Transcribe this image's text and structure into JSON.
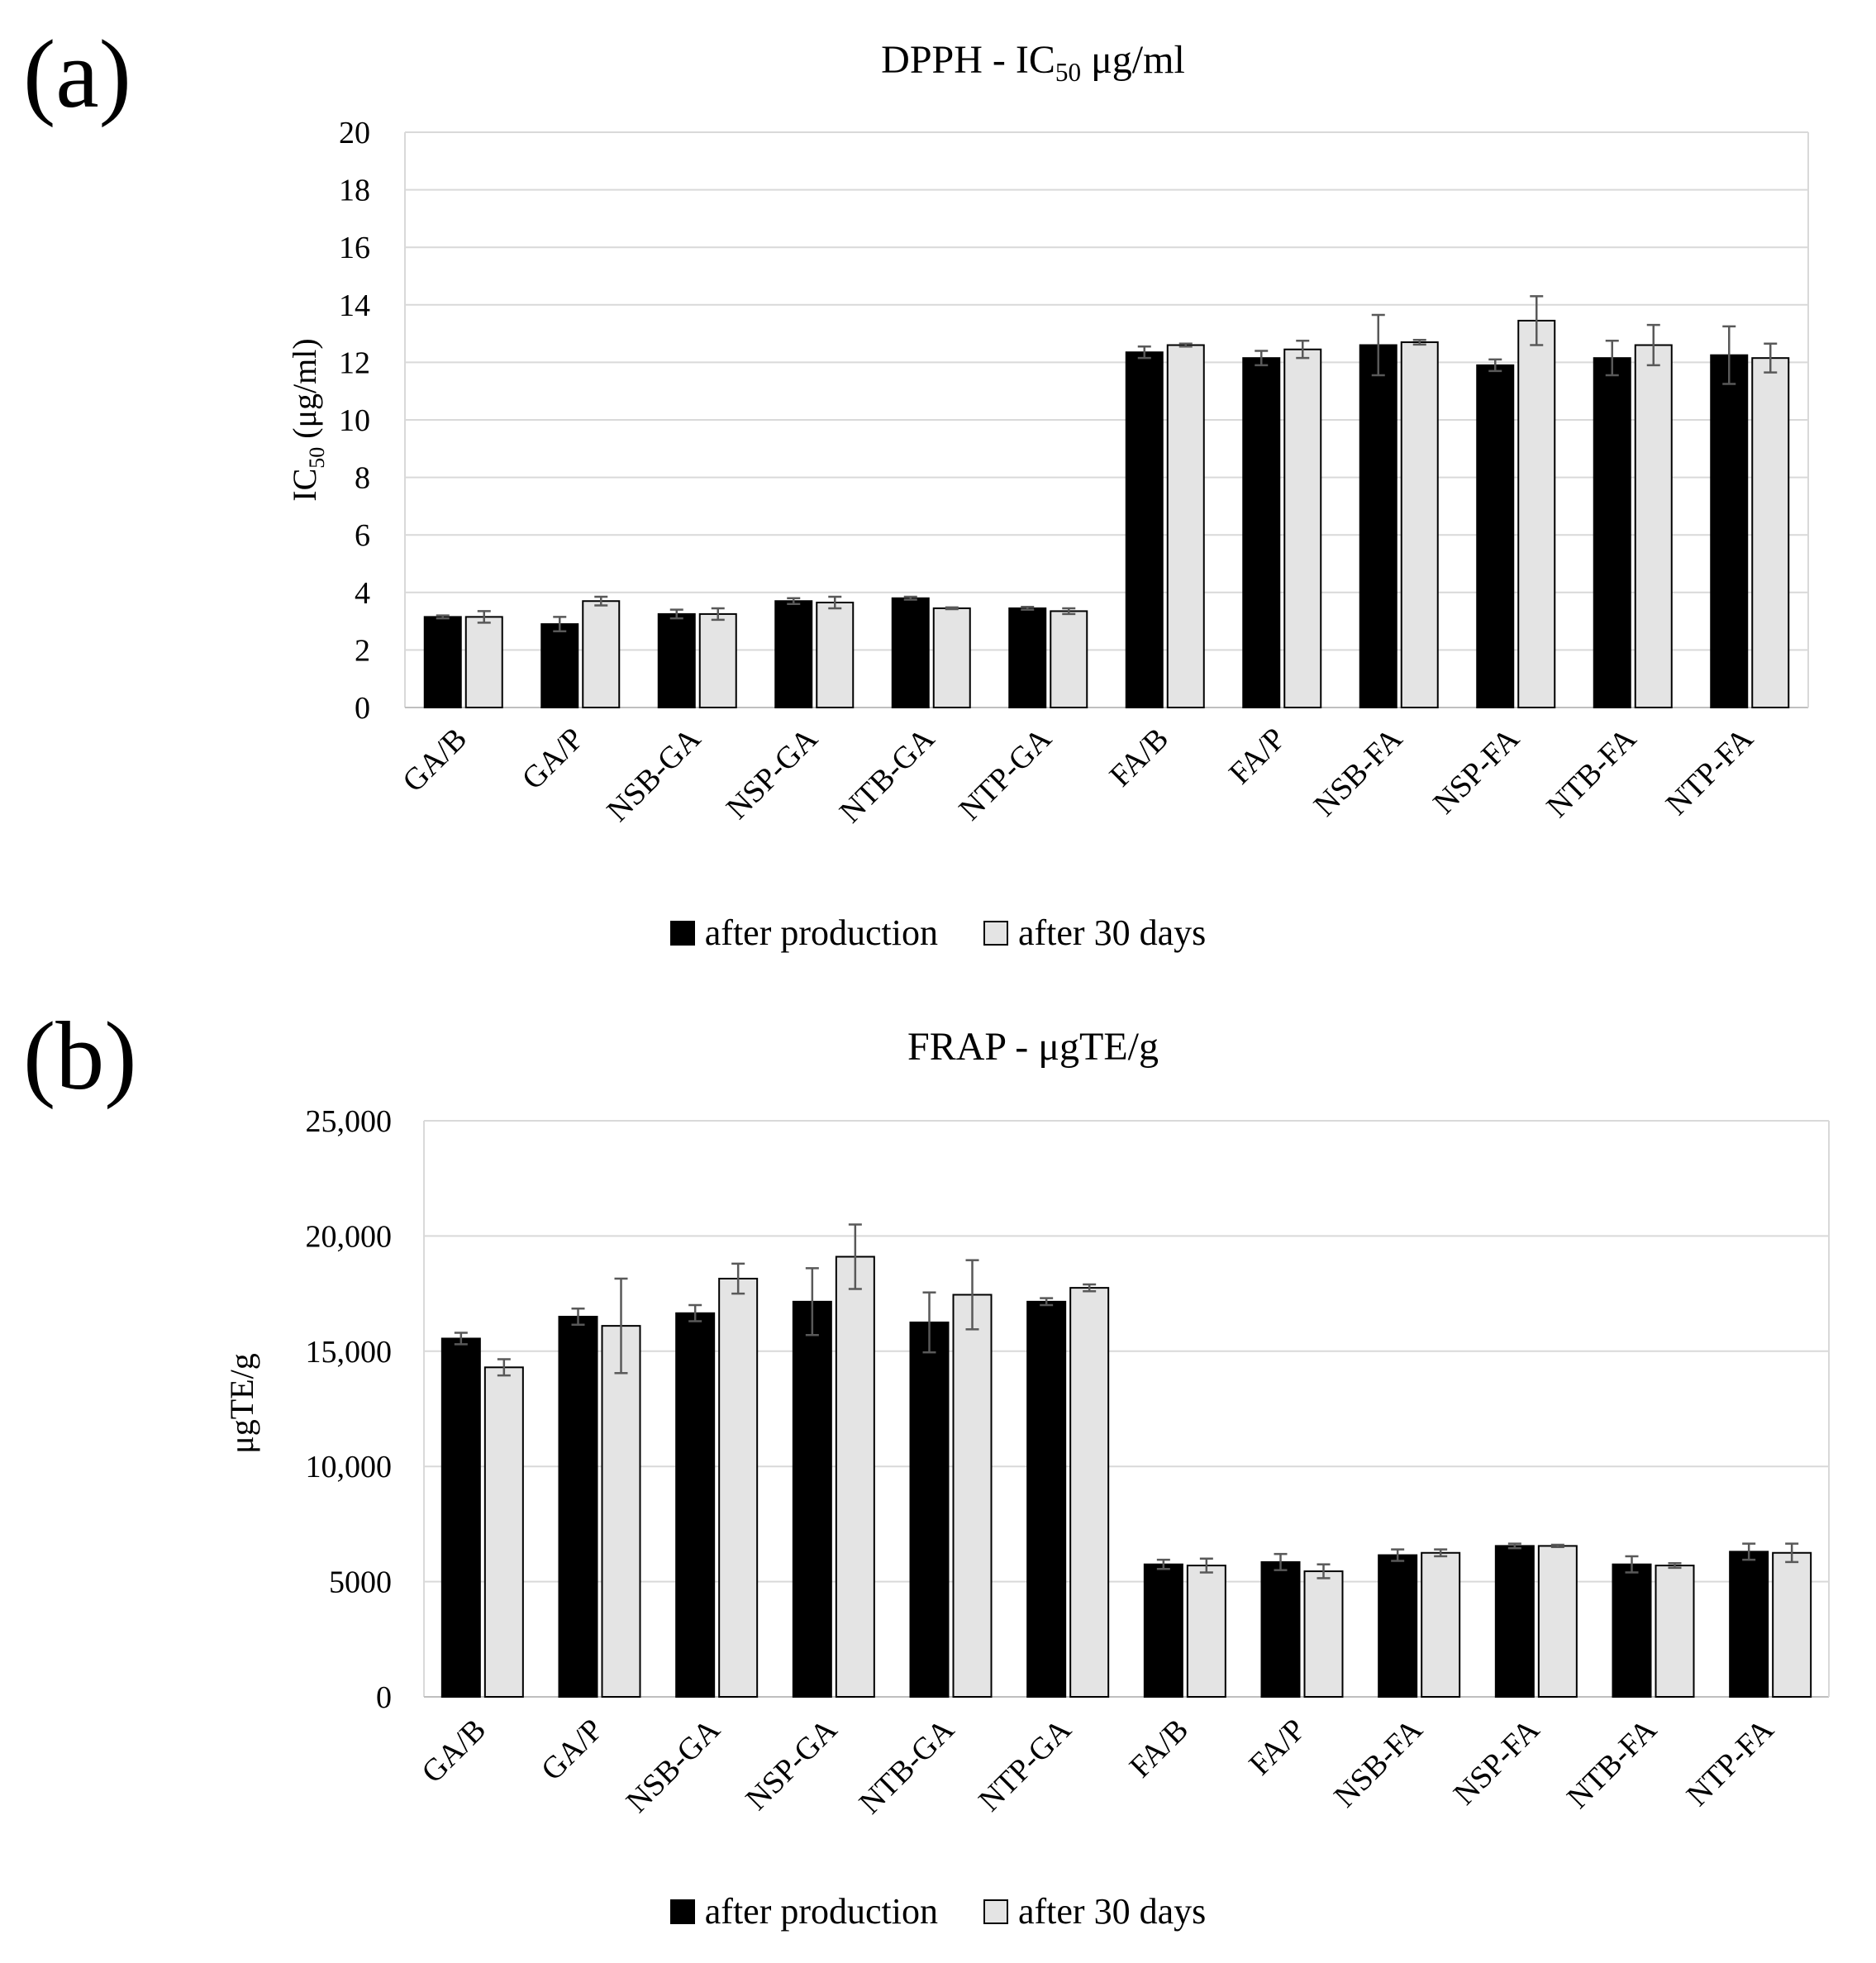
{
  "panels": {
    "a": {
      "label": "(a)"
    },
    "b": {
      "label": "(b)"
    }
  },
  "legend": {
    "series_1": "after production",
    "series_2": "after 30 days"
  },
  "colors": {
    "series_1": "#000000",
    "series_2": "#e4e4e4",
    "grid": "#d9d9d9",
    "error": "#595959"
  },
  "chart_data": [
    {
      "type": "bar",
      "title": "DPPH - IC50 μg/ml",
      "title_prefix": "DPPH - IC",
      "title_sub": "50",
      "title_suffix": " μg/ml",
      "ylabel": "IC50 (μg/ml)",
      "ylabel_prefix": "IC",
      "ylabel_sub": "50",
      "ylabel_suffix": " (μg/ml)",
      "xlabel": "",
      "ylim": [
        0,
        20
      ],
      "yticks": [
        0,
        2,
        4,
        6,
        8,
        10,
        12,
        14,
        16,
        18,
        20
      ],
      "ytick_labels": [
        "0",
        "2",
        "4",
        "6",
        "8",
        "10",
        "12",
        "14",
        "16",
        "18",
        "20"
      ],
      "grid": true,
      "categories": [
        "GA/B",
        "GA/P",
        "NSB-GA",
        "NSP-GA",
        "NTB-GA",
        "NTP-GA",
        "FA/B",
        "FA/P",
        "NSB-FA",
        "NSP-FA",
        "NTB-FA",
        "NTP-FA"
      ],
      "series": [
        {
          "name": "after production",
          "values": [
            3.15,
            2.9,
            3.25,
            3.7,
            3.8,
            3.45,
            12.35,
            12.15,
            12.6,
            11.9,
            12.15,
            12.25
          ],
          "errors": [
            0.05,
            0.25,
            0.15,
            0.1,
            0.05,
            0.05,
            0.2,
            0.25,
            1.05,
            0.2,
            0.6,
            1.0
          ]
        },
        {
          "name": "after 30 days",
          "values": [
            3.15,
            3.7,
            3.25,
            3.65,
            3.45,
            3.35,
            12.6,
            12.45,
            12.7,
            13.45,
            12.6,
            12.15
          ],
          "errors": [
            0.2,
            0.15,
            0.2,
            0.2,
            0.03,
            0.1,
            0.05,
            0.3,
            0.08,
            0.85,
            0.7,
            0.5
          ]
        }
      ]
    },
    {
      "type": "bar",
      "title": "FRAP - μgTE/g",
      "ylabel": "μgTE/g",
      "xlabel": "",
      "ylim": [
        0,
        25000
      ],
      "yticks": [
        0,
        5000,
        10000,
        15000,
        20000,
        25000
      ],
      "ytick_labels": [
        "0",
        "5000",
        "10,000",
        "15,000",
        "20,000",
        "25,000"
      ],
      "grid": true,
      "categories": [
        "GA/B",
        "GA/P",
        "NSB-GA",
        "NSP-GA",
        "NTB-GA",
        "NTP-GA",
        "FA/B",
        "FA/P",
        "NSB-FA",
        "NSP-FA",
        "NTB-FA",
        "NTP-FA"
      ],
      "series": [
        {
          "name": "after production",
          "values": [
            15550,
            16500,
            16650,
            17150,
            16250,
            17150,
            5750,
            5850,
            6150,
            6550,
            5750,
            6300
          ],
          "errors": [
            250,
            350,
            350,
            1450,
            1300,
            150,
            200,
            350,
            250,
            100,
            350,
            350
          ]
        },
        {
          "name": "after 30 days",
          "values": [
            14300,
            16100,
            18150,
            19100,
            17450,
            17750,
            5700,
            5450,
            6250,
            6550,
            5700,
            6250
          ],
          "errors": [
            350,
            2050,
            650,
            1400,
            1500,
            150,
            300,
            300,
            150,
            50,
            100,
            400
          ]
        }
      ]
    }
  ]
}
